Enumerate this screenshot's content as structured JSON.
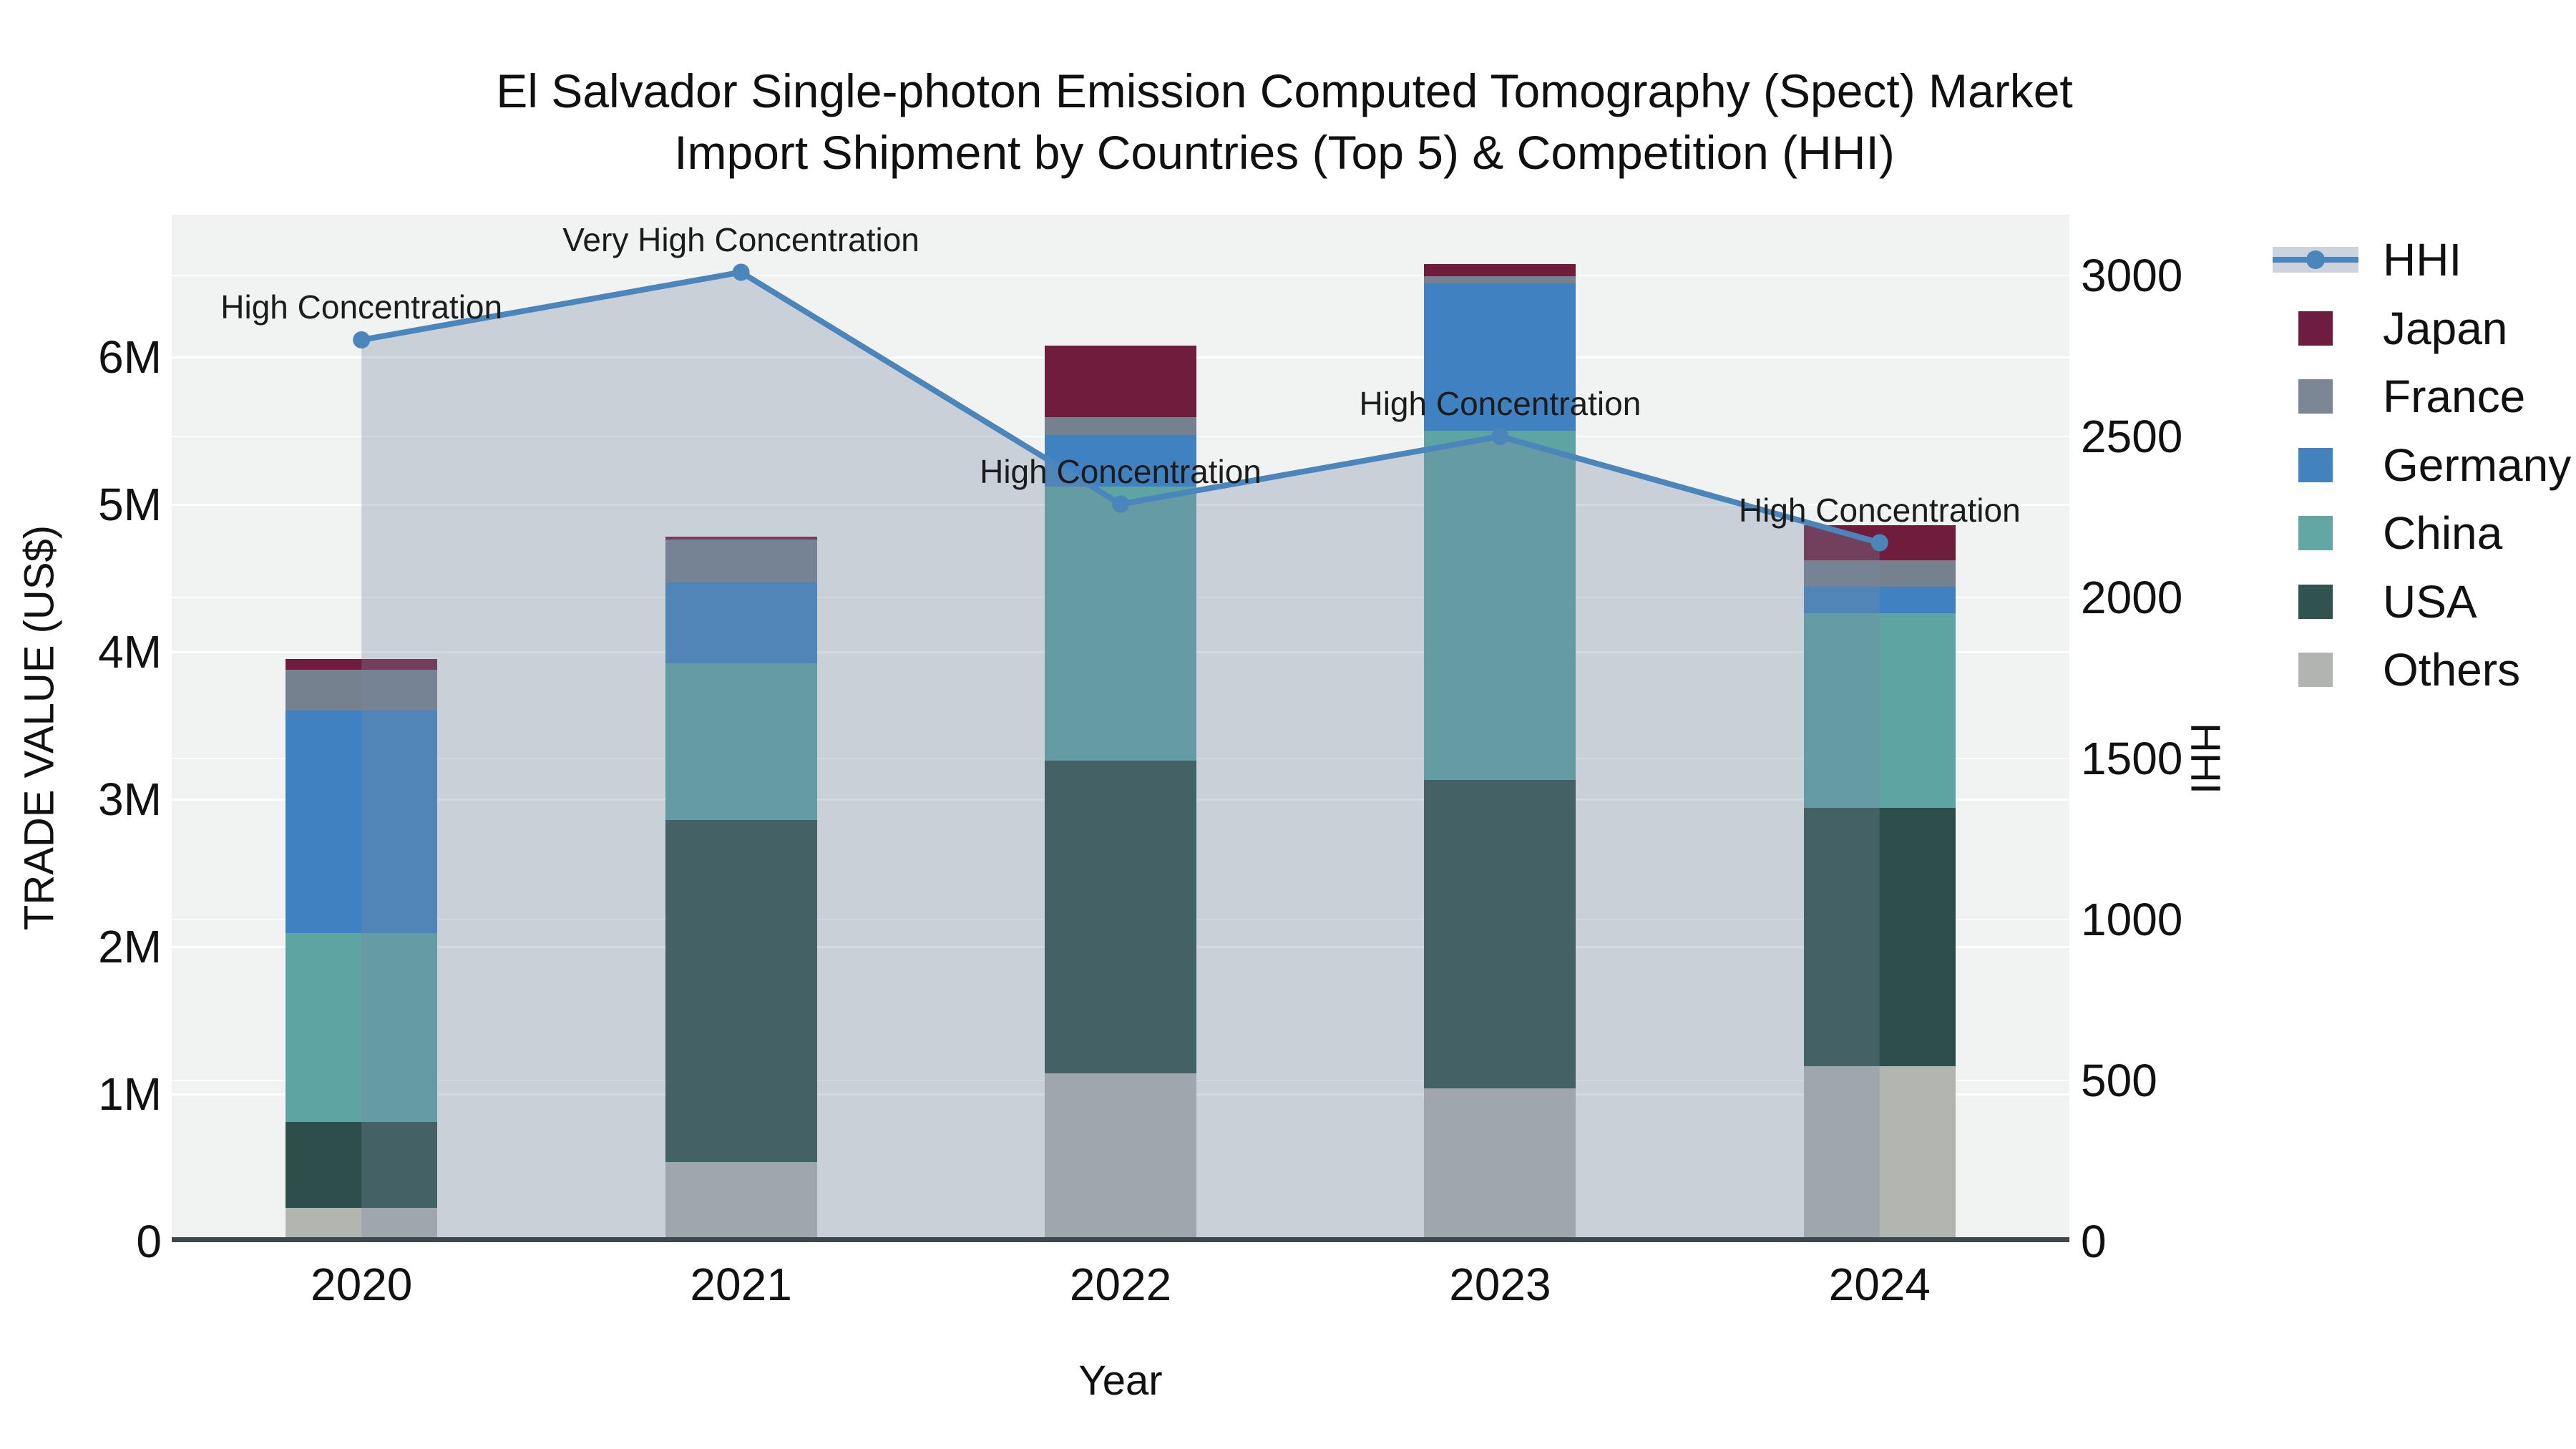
{
  "title": {
    "line1": "El Salvador Single-photon Emission Computed Tomography (Spect) Market",
    "line2": "Import Shipment by Countries (Top 5) & Competition (HHI)"
  },
  "chart_data": {
    "type": "bar+line",
    "title": "El Salvador Single-photon Emission Computed Tomography (Spect) Market Import Shipment by Countries (Top 5) & Competition (HHI)",
    "categories": [
      "2020",
      "2021",
      "2022",
      "2023",
      "2024"
    ],
    "stack_order_bottom_to_top": [
      "Others",
      "USA",
      "China",
      "Germany",
      "France",
      "Japan"
    ],
    "series": [
      {
        "name": "Others",
        "color": "#b3b5b1",
        "values_musd": [
          0.23,
          0.54,
          1.14,
          1.04,
          1.19
        ]
      },
      {
        "name": "USA",
        "color": "#2d4e4a",
        "values_musd": [
          0.58,
          2.32,
          2.12,
          2.09,
          1.75
        ]
      },
      {
        "name": "China",
        "color": "#5da4a3",
        "values_musd": [
          1.28,
          1.06,
          1.86,
          2.37,
          1.32
        ]
      },
      {
        "name": "Germany",
        "color": "#4082c1",
        "values_musd": [
          1.51,
          0.55,
          0.35,
          1.0,
          0.18
        ]
      },
      {
        "name": "France",
        "color": "#76818f",
        "values_musd": [
          0.28,
          0.29,
          0.12,
          0.05,
          0.18
        ]
      },
      {
        "name": "Japan",
        "color": "#701d3d",
        "values_musd": [
          0.07,
          0.02,
          0.49,
          0.08,
          0.24
        ]
      }
    ],
    "bar_totals_musd": [
      3.95,
      4.78,
      6.08,
      6.63,
      4.86
    ],
    "line": {
      "name": "HHI",
      "color": "#4a86bb",
      "area_fill": "rgba(119,136,161,0.32)",
      "values": [
        2800,
        3010,
        2290,
        2500,
        2170
      ]
    },
    "annotations": [
      {
        "year": "2020",
        "text": "High Concentration"
      },
      {
        "year": "2021",
        "text": "Very High Concentration"
      },
      {
        "year": "2022",
        "text": "High Concentration"
      },
      {
        "year": "2023",
        "text": "High Concentration"
      },
      {
        "year": "2024",
        "text": "High Concentration"
      }
    ],
    "xlabel": "Year",
    "ylabel": "TRADE VALUE (US$)",
    "y2label": "HHI",
    "left_axis": {
      "ticks": [
        "0",
        "1M",
        "2M",
        "3M",
        "4M",
        "5M",
        "6M"
      ],
      "values_musd": [
        0,
        1,
        2,
        3,
        4,
        5,
        6
      ],
      "range_musd": [
        0,
        6.97
      ]
    },
    "right_axis": {
      "ticks": [
        "0",
        "500",
        "1000",
        "1500",
        "2000",
        "2500",
        "3000"
      ],
      "values": [
        0,
        500,
        1000,
        1500,
        2000,
        2500,
        3000
      ],
      "range": [
        0,
        3190
      ]
    },
    "grid": true,
    "legend_position": "right",
    "legend": [
      {
        "label": "HHI",
        "swatch": "line"
      },
      {
        "label": "Japan",
        "swatch": "#6e1c3f"
      },
      {
        "label": "France",
        "swatch": "#7c8796"
      },
      {
        "label": "Germany",
        "swatch": "#4383bd"
      },
      {
        "label": "China",
        "swatch": "#63a7a4"
      },
      {
        "label": "USA",
        "swatch": "#31534f"
      },
      {
        "label": "Others",
        "swatch": "#b2b4b2"
      }
    ],
    "legend_band_color": "#ccd3dc",
    "plot_bg": "#f1f2f2"
  }
}
